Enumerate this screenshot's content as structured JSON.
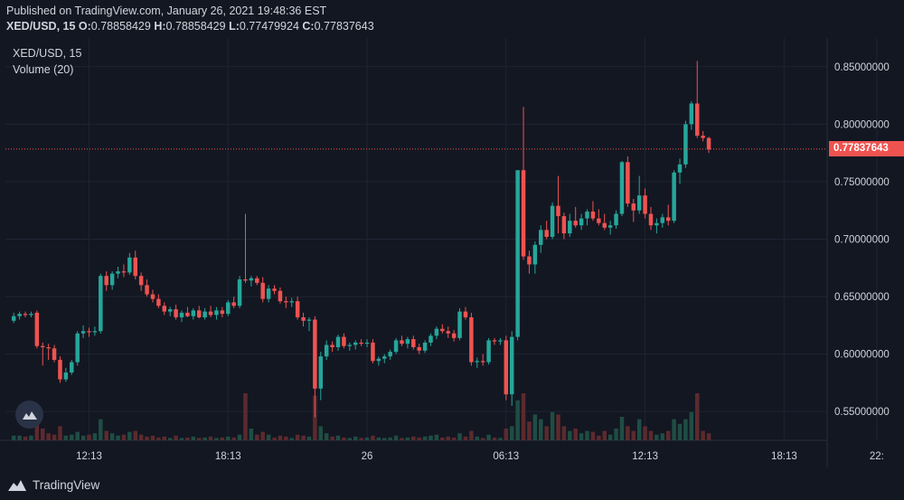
{
  "header": {
    "published": "Published on TradingView.com, January 26, 2021 19:48:36 EST",
    "symbol": "XED/USD, 15",
    "o_label": "O:",
    "o_value": "0.78858429",
    "h_label": "H:",
    "h_value": "0.78858429",
    "l_label": "L:",
    "l_value": "0.77479924",
    "c_label": "C:",
    "c_value": "0.77837643"
  },
  "legend": {
    "series": "XED/USD, 15",
    "volume": "Volume (20)"
  },
  "current_price_label": "0.77837643",
  "brand": "TradingView",
  "colors": {
    "background": "#131722",
    "grid": "#1e2433",
    "up": "#26a69a",
    "down": "#ef5350",
    "vol_up": "#1f4d44",
    "vol_down": "#5c2a2e",
    "axis_text": "#d1d4dc",
    "price_line": "#ef5350"
  },
  "chart_data": {
    "type": "candlestick",
    "symbol": "XED/USD",
    "interval": "15",
    "ylim": [
      0.525,
      0.875
    ],
    "y_ticks": [
      "0.85000000",
      "0.80000000",
      "0.75000000",
      "0.70000000",
      "0.65000000",
      "0.60000000",
      "0.55000000"
    ],
    "y_tick_values": [
      0.85,
      0.8,
      0.75,
      0.7,
      0.65,
      0.6,
      0.55
    ],
    "x_ticks": [
      "12:13",
      "18:13",
      "26",
      "06:13",
      "12:13",
      "18:13",
      "22:"
    ],
    "x_tick_index": [
      13,
      37,
      61,
      85,
      109,
      133,
      149
    ],
    "current_price": 0.77837643,
    "legend": [
      "XED/USD, 15",
      "Volume (20)"
    ],
    "candles": [
      [
        0.629,
        0.636,
        0.627,
        0.633
      ],
      [
        0.633,
        0.637,
        0.63,
        0.635
      ],
      [
        0.635,
        0.637,
        0.632,
        0.634
      ],
      [
        0.634,
        0.637,
        0.632,
        0.635
      ],
      [
        0.636,
        0.638,
        0.605,
        0.607
      ],
      [
        0.607,
        0.61,
        0.59,
        0.606
      ],
      [
        0.606,
        0.609,
        0.595,
        0.605
      ],
      [
        0.605,
        0.608,
        0.593,
        0.595
      ],
      [
        0.595,
        0.598,
        0.575,
        0.578
      ],
      [
        0.578,
        0.588,
        0.576,
        0.584
      ],
      [
        0.584,
        0.595,
        0.582,
        0.593
      ],
      [
        0.593,
        0.62,
        0.59,
        0.618
      ],
      [
        0.618,
        0.625,
        0.614,
        0.62
      ],
      [
        0.62,
        0.623,
        0.615,
        0.619
      ],
      [
        0.619,
        0.624,
        0.616,
        0.62
      ],
      [
        0.62,
        0.67,
        0.618,
        0.668
      ],
      [
        0.668,
        0.672,
        0.655,
        0.66
      ],
      [
        0.66,
        0.672,
        0.656,
        0.67
      ],
      [
        0.67,
        0.676,
        0.666,
        0.672
      ],
      [
        0.672,
        0.678,
        0.667,
        0.671
      ],
      [
        0.671,
        0.688,
        0.669,
        0.684
      ],
      [
        0.684,
        0.69,
        0.665,
        0.668
      ],
      [
        0.668,
        0.671,
        0.655,
        0.66
      ],
      [
        0.66,
        0.665,
        0.65,
        0.652
      ],
      [
        0.652,
        0.656,
        0.645,
        0.648
      ],
      [
        0.648,
        0.652,
        0.64,
        0.642
      ],
      [
        0.642,
        0.645,
        0.634,
        0.637
      ],
      [
        0.637,
        0.641,
        0.633,
        0.639
      ],
      [
        0.639,
        0.643,
        0.63,
        0.632
      ],
      [
        0.632,
        0.638,
        0.628,
        0.636
      ],
      [
        0.636,
        0.641,
        0.632,
        0.633
      ],
      [
        0.633,
        0.64,
        0.63,
        0.638
      ],
      [
        0.638,
        0.642,
        0.631,
        0.632
      ],
      [
        0.632,
        0.64,
        0.63,
        0.637
      ],
      [
        0.637,
        0.642,
        0.632,
        0.634
      ],
      [
        0.634,
        0.641,
        0.63,
        0.638
      ],
      [
        0.638,
        0.641,
        0.632,
        0.635
      ],
      [
        0.635,
        0.647,
        0.633,
        0.645
      ],
      [
        0.645,
        0.65,
        0.64,
        0.642
      ],
      [
        0.642,
        0.668,
        0.64,
        0.665
      ],
      [
        0.665,
        0.722,
        0.662,
        0.664
      ],
      [
        0.664,
        0.668,
        0.659,
        0.666
      ],
      [
        0.666,
        0.668,
        0.66,
        0.662
      ],
      [
        0.662,
        0.667,
        0.645,
        0.648
      ],
      [
        0.648,
        0.66,
        0.645,
        0.657
      ],
      [
        0.657,
        0.66,
        0.652,
        0.655
      ],
      [
        0.655,
        0.658,
        0.644,
        0.646
      ],
      [
        0.646,
        0.65,
        0.64,
        0.645
      ],
      [
        0.645,
        0.649,
        0.641,
        0.646
      ],
      [
        0.646,
        0.65,
        0.63,
        0.632
      ],
      [
        0.632,
        0.636,
        0.624,
        0.629
      ],
      [
        0.629,
        0.632,
        0.62,
        0.63
      ],
      [
        0.63,
        0.633,
        0.545,
        0.57
      ],
      [
        0.57,
        0.602,
        0.56,
        0.598
      ],
      [
        0.598,
        0.612,
        0.595,
        0.608
      ],
      [
        0.608,
        0.611,
        0.602,
        0.606
      ],
      [
        0.606,
        0.617,
        0.603,
        0.615
      ],
      [
        0.615,
        0.618,
        0.605,
        0.607
      ],
      [
        0.607,
        0.61,
        0.603,
        0.608
      ],
      [
        0.608,
        0.612,
        0.604,
        0.61
      ],
      [
        0.61,
        0.613,
        0.607,
        0.609
      ],
      [
        0.609,
        0.613,
        0.606,
        0.61
      ],
      [
        0.61,
        0.613,
        0.592,
        0.594
      ],
      [
        0.594,
        0.598,
        0.59,
        0.596
      ],
      [
        0.596,
        0.6,
        0.592,
        0.598
      ],
      [
        0.598,
        0.604,
        0.595,
        0.602
      ],
      [
        0.602,
        0.614,
        0.6,
        0.612
      ],
      [
        0.612,
        0.616,
        0.607,
        0.609
      ],
      [
        0.609,
        0.615,
        0.605,
        0.613
      ],
      [
        0.613,
        0.616,
        0.604,
        0.606
      ],
      [
        0.606,
        0.609,
        0.6,
        0.603
      ],
      [
        0.603,
        0.612,
        0.601,
        0.61
      ],
      [
        0.61,
        0.618,
        0.607,
        0.616
      ],
      [
        0.616,
        0.624,
        0.613,
        0.622
      ],
      [
        0.622,
        0.626,
        0.618,
        0.62
      ],
      [
        0.62,
        0.624,
        0.614,
        0.618
      ],
      [
        0.618,
        0.621,
        0.611,
        0.614
      ],
      [
        0.614,
        0.64,
        0.612,
        0.637
      ],
      [
        0.637,
        0.641,
        0.63,
        0.632
      ],
      [
        0.632,
        0.636,
        0.59,
        0.593
      ],
      [
        0.593,
        0.597,
        0.588,
        0.594
      ],
      [
        0.594,
        0.6,
        0.59,
        0.593
      ],
      [
        0.593,
        0.614,
        0.591,
        0.612
      ],
      [
        0.612,
        0.614,
        0.608,
        0.611
      ],
      [
        0.611,
        0.614,
        0.608,
        0.612
      ],
      [
        0.612,
        0.616,
        0.56,
        0.565
      ],
      [
        0.565,
        0.62,
        0.555,
        0.615
      ],
      [
        0.615,
        0.76,
        0.612,
        0.76
      ],
      [
        0.76,
        0.815,
        0.682,
        0.685
      ],
      [
        0.685,
        0.69,
        0.67,
        0.678
      ],
      [
        0.678,
        0.698,
        0.67,
        0.695
      ],
      [
        0.695,
        0.712,
        0.688,
        0.708
      ],
      [
        0.708,
        0.716,
        0.7,
        0.702
      ],
      [
        0.702,
        0.732,
        0.7,
        0.729
      ],
      [
        0.729,
        0.755,
        0.705,
        0.72
      ],
      [
        0.72,
        0.723,
        0.7,
        0.705
      ],
      [
        0.705,
        0.722,
        0.702,
        0.716
      ],
      [
        0.716,
        0.728,
        0.71,
        0.712
      ],
      [
        0.712,
        0.722,
        0.708,
        0.718
      ],
      [
        0.718,
        0.726,
        0.712,
        0.724
      ],
      [
        0.724,
        0.733,
        0.716,
        0.718
      ],
      [
        0.718,
        0.726,
        0.712,
        0.714
      ],
      [
        0.714,
        0.722,
        0.708,
        0.71
      ],
      [
        0.71,
        0.716,
        0.704,
        0.712
      ],
      [
        0.712,
        0.725,
        0.709,
        0.722
      ],
      [
        0.722,
        0.768,
        0.72,
        0.767
      ],
      [
        0.767,
        0.772,
        0.728,
        0.731
      ],
      [
        0.731,
        0.735,
        0.715,
        0.725
      ],
      [
        0.725,
        0.755,
        0.722,
        0.738
      ],
      [
        0.738,
        0.744,
        0.718,
        0.722
      ],
      [
        0.722,
        0.728,
        0.708,
        0.712
      ],
      [
        0.712,
        0.718,
        0.705,
        0.714
      ],
      [
        0.714,
        0.722,
        0.71,
        0.719
      ],
      [
        0.719,
        0.73,
        0.712,
        0.716
      ],
      [
        0.716,
        0.76,
        0.714,
        0.758
      ],
      [
        0.758,
        0.77,
        0.748,
        0.765
      ],
      [
        0.765,
        0.803,
        0.762,
        0.8
      ],
      [
        0.8,
        0.82,
        0.795,
        0.818
      ],
      [
        0.818,
        0.855,
        0.788,
        0.79
      ],
      [
        0.79,
        0.794,
        0.785,
        0.788
      ],
      [
        0.788,
        0.789,
        0.775,
        0.778
      ]
    ],
    "volumes": [
      0.1,
      0.1,
      0.08,
      0.1,
      0.55,
      0.25,
      0.15,
      0.12,
      0.3,
      0.1,
      0.12,
      0.18,
      0.1,
      0.12,
      0.15,
      0.45,
      0.2,
      0.15,
      0.1,
      0.12,
      0.18,
      0.2,
      0.12,
      0.08,
      0.1,
      0.06,
      0.08,
      0.05,
      0.1,
      0.05,
      0.06,
      0.08,
      0.05,
      0.06,
      0.08,
      0.05,
      0.06,
      0.08,
      0.06,
      0.12,
      1.0,
      0.25,
      0.12,
      0.18,
      0.12,
      0.06,
      0.1,
      0.08,
      0.05,
      0.12,
      0.1,
      0.08,
      0.95,
      0.3,
      0.15,
      0.08,
      0.1,
      0.06,
      0.05,
      0.08,
      0.05,
      0.06,
      0.1,
      0.06,
      0.05,
      0.06,
      0.1,
      0.05,
      0.06,
      0.08,
      0.06,
      0.08,
      0.1,
      0.12,
      0.06,
      0.08,
      0.06,
      0.15,
      0.08,
      0.2,
      0.08,
      0.05,
      0.12,
      0.06,
      0.05,
      0.25,
      0.3,
      0.85,
      1.0,
      0.4,
      0.55,
      0.45,
      0.3,
      0.6,
      0.55,
      0.3,
      0.2,
      0.25,
      0.15,
      0.2,
      0.18,
      0.1,
      0.2,
      0.12,
      0.25,
      0.5,
      0.3,
      0.2,
      0.45,
      0.3,
      0.2,
      0.12,
      0.15,
      0.2,
      0.45,
      0.35,
      0.45,
      0.6,
      1.0,
      0.2,
      0.15
    ]
  }
}
